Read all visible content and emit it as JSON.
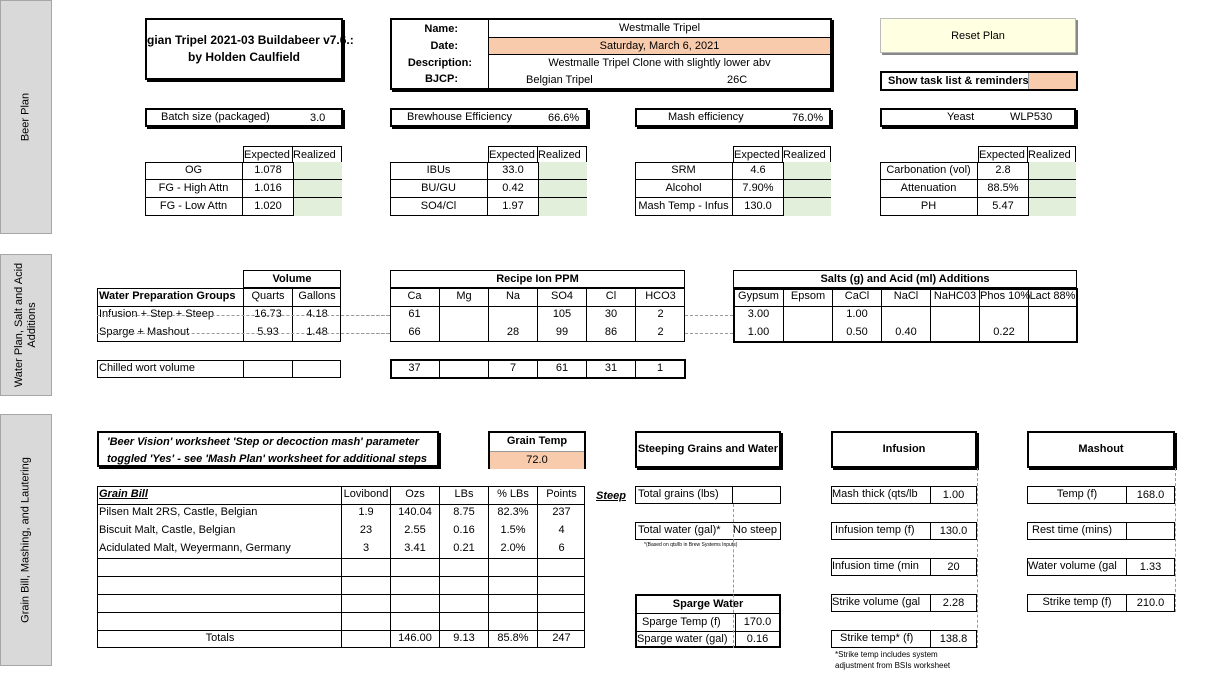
{
  "tabs": {
    "beer_plan": "Beer Plan",
    "water_plan": "Water Plan, Salt and Acid Additions",
    "grain_bill": "Grain Bill, Mashing, and Lautering"
  },
  "header": {
    "title_line1": "gian Tripel 2021-03 Buildabeer v7.6.:",
    "title_line2": "by Holden Caulfield"
  },
  "recipe": {
    "name_label": "Name:",
    "name_value": "Westmalle Tripel",
    "date_label": "Date:",
    "date_value": "Saturday, March 6, 2021",
    "desc_label": "Description:",
    "desc_value": "Westmalle Tripel Clone with slightly lower abv",
    "bjcp_label": "BJCP:",
    "bjcp_style": "Belgian Tripel",
    "bjcp_code": "26C"
  },
  "buttons": {
    "reset": "Reset Plan",
    "show_tasks": "Show task list & reminders"
  },
  "summary": {
    "batch_label": "Batch size (packaged)",
    "batch_value": "3.0",
    "bh_label": "Brewhouse Efficiency",
    "bh_value": "66.6%",
    "mash_label": "Mash efficiency",
    "mash_value": "76.0%",
    "yeast_label": "Yeast",
    "yeast_value": "WLP530"
  },
  "stats": {
    "expected": "Expected",
    "realized": "Realized",
    "g1": [
      {
        "label": "OG",
        "value": "1.078"
      },
      {
        "label": "FG - High Attn",
        "value": "1.016"
      },
      {
        "label": "FG - Low Attn",
        "value": "1.020"
      }
    ],
    "g2": [
      {
        "label": "IBUs",
        "value": "33.0"
      },
      {
        "label": "BU/GU",
        "value": "0.42"
      },
      {
        "label": "SO4/Cl",
        "value": "1.97"
      }
    ],
    "g3": [
      {
        "label": "SRM",
        "value": "4.6"
      },
      {
        "label": "Alcohol",
        "value": "7.90%"
      },
      {
        "label": "Mash Temp - Infus",
        "value": "130.0"
      }
    ],
    "g4": [
      {
        "label": "Carbonation (vol)",
        "value": "2.8"
      },
      {
        "label": "Attenuation",
        "value": "88.5%"
      },
      {
        "label": "PH",
        "value": "5.47"
      }
    ]
  },
  "water": {
    "volume_header": "Volume",
    "groups_label": "Water Preparation Groups",
    "quarts": "Quarts",
    "gallons": "Gallons",
    "rows": [
      {
        "label": "Infusion + Step + Steep",
        "quarts": "16.73",
        "gallons": "4.18"
      },
      {
        "label": "Sparge + Mashout",
        "quarts": "5.93",
        "gallons": "1.48"
      }
    ],
    "chilled_label": "Chilled wort volume",
    "ion_header": "Recipe Ion PPM",
    "ion_cols": [
      "Ca",
      "Mg",
      "Na",
      "SO4",
      "Cl",
      "HCO3"
    ],
    "ion_rows": [
      [
        "61",
        "",
        "",
        "105",
        "30",
        "2"
      ],
      [
        "66",
        "",
        "28",
        "99",
        "86",
        "2"
      ]
    ],
    "ion_chilled": [
      "37",
      "",
      "7",
      "61",
      "31",
      "1"
    ],
    "salt_header": "Salts (g) and Acid (ml) Additions",
    "salt_cols": [
      "Gypsum",
      "Epsom",
      "CaCl",
      "NaCl",
      "NaHC03",
      "Phos 10%",
      "Lact 88%"
    ],
    "salt_rows": [
      [
        "3.00",
        "",
        "1.00",
        "",
        "",
        "",
        ""
      ],
      [
        "1.00",
        "",
        "0.50",
        "0.40",
        "",
        "0.22",
        ""
      ]
    ]
  },
  "grain": {
    "notice_line1": "'Beer Vision' worksheet 'Step or decoction mash' parameter",
    "notice_line2": "toggled 'Yes' - see 'Mash Plan' worksheet for additional steps",
    "grain_temp_label": "Grain Temp",
    "grain_temp_value": "72.0",
    "bill_label": "Grain Bill",
    "cols": [
      "Lovibond",
      "Ozs",
      "LBs",
      "% LBs",
      "Points"
    ],
    "steep_link": "Steep",
    "rows": [
      {
        "name": "Pilsen Malt 2RS, Castle, Belgian",
        "lov": "1.9",
        "ozs": "140.04",
        "lbs": "8.75",
        "pct": "82.3%",
        "pts": "237"
      },
      {
        "name": "Biscuit Malt, Castle, Belgian",
        "lov": "23",
        "ozs": "2.55",
        "lbs": "0.16",
        "pct": "1.5%",
        "pts": "4"
      },
      {
        "name": "Acidulated Malt, Weyermann, Germany",
        "lov": "3",
        "ozs": "3.41",
        "lbs": "0.21",
        "pct": "2.0%",
        "pts": "6"
      }
    ],
    "totals": {
      "label": "Totals",
      "ozs": "146.00",
      "lbs": "9.13",
      "pct": "85.8%",
      "pts": "247"
    }
  },
  "steeping": {
    "header": "Steeping Grains and Water",
    "total_grains_label": "Total grains (lbs)",
    "total_water_label": "Total water (gal)*",
    "total_water_value": "No steep",
    "footnote": "*(Based on qts/lb in Brew Systems Inputs)"
  },
  "sparge": {
    "header": "Sparge Water",
    "temp_label": "Sparge Temp (f)",
    "temp_value": "170.0",
    "water_label": "Sparge water (gal)",
    "water_value": "0.16"
  },
  "infusion": {
    "header": "Infusion",
    "rows": [
      {
        "label": "Mash thick (qts/lb",
        "value": "1.00"
      },
      {
        "label": "Infusion temp (f)",
        "value": "130.0"
      },
      {
        "label": "Infusion time (min",
        "value": "20"
      },
      {
        "label": "Strike volume (gal",
        "value": "2.28"
      },
      {
        "label": "Strike temp* (f)",
        "value": "138.8"
      }
    ],
    "footnote1": "*Strike temp includes system",
    "footnote2": "adjustment from BSIs worksheet"
  },
  "mashout": {
    "header": "Mashout",
    "rows": [
      {
        "label": "Temp (f)",
        "value": "168.0"
      },
      {
        "label": "Rest time (mins)",
        "value": ""
      },
      {
        "label": "Water volume (gal",
        "value": "1.33"
      },
      {
        "label": "Strike temp (f)",
        "value": "210.0"
      }
    ]
  }
}
